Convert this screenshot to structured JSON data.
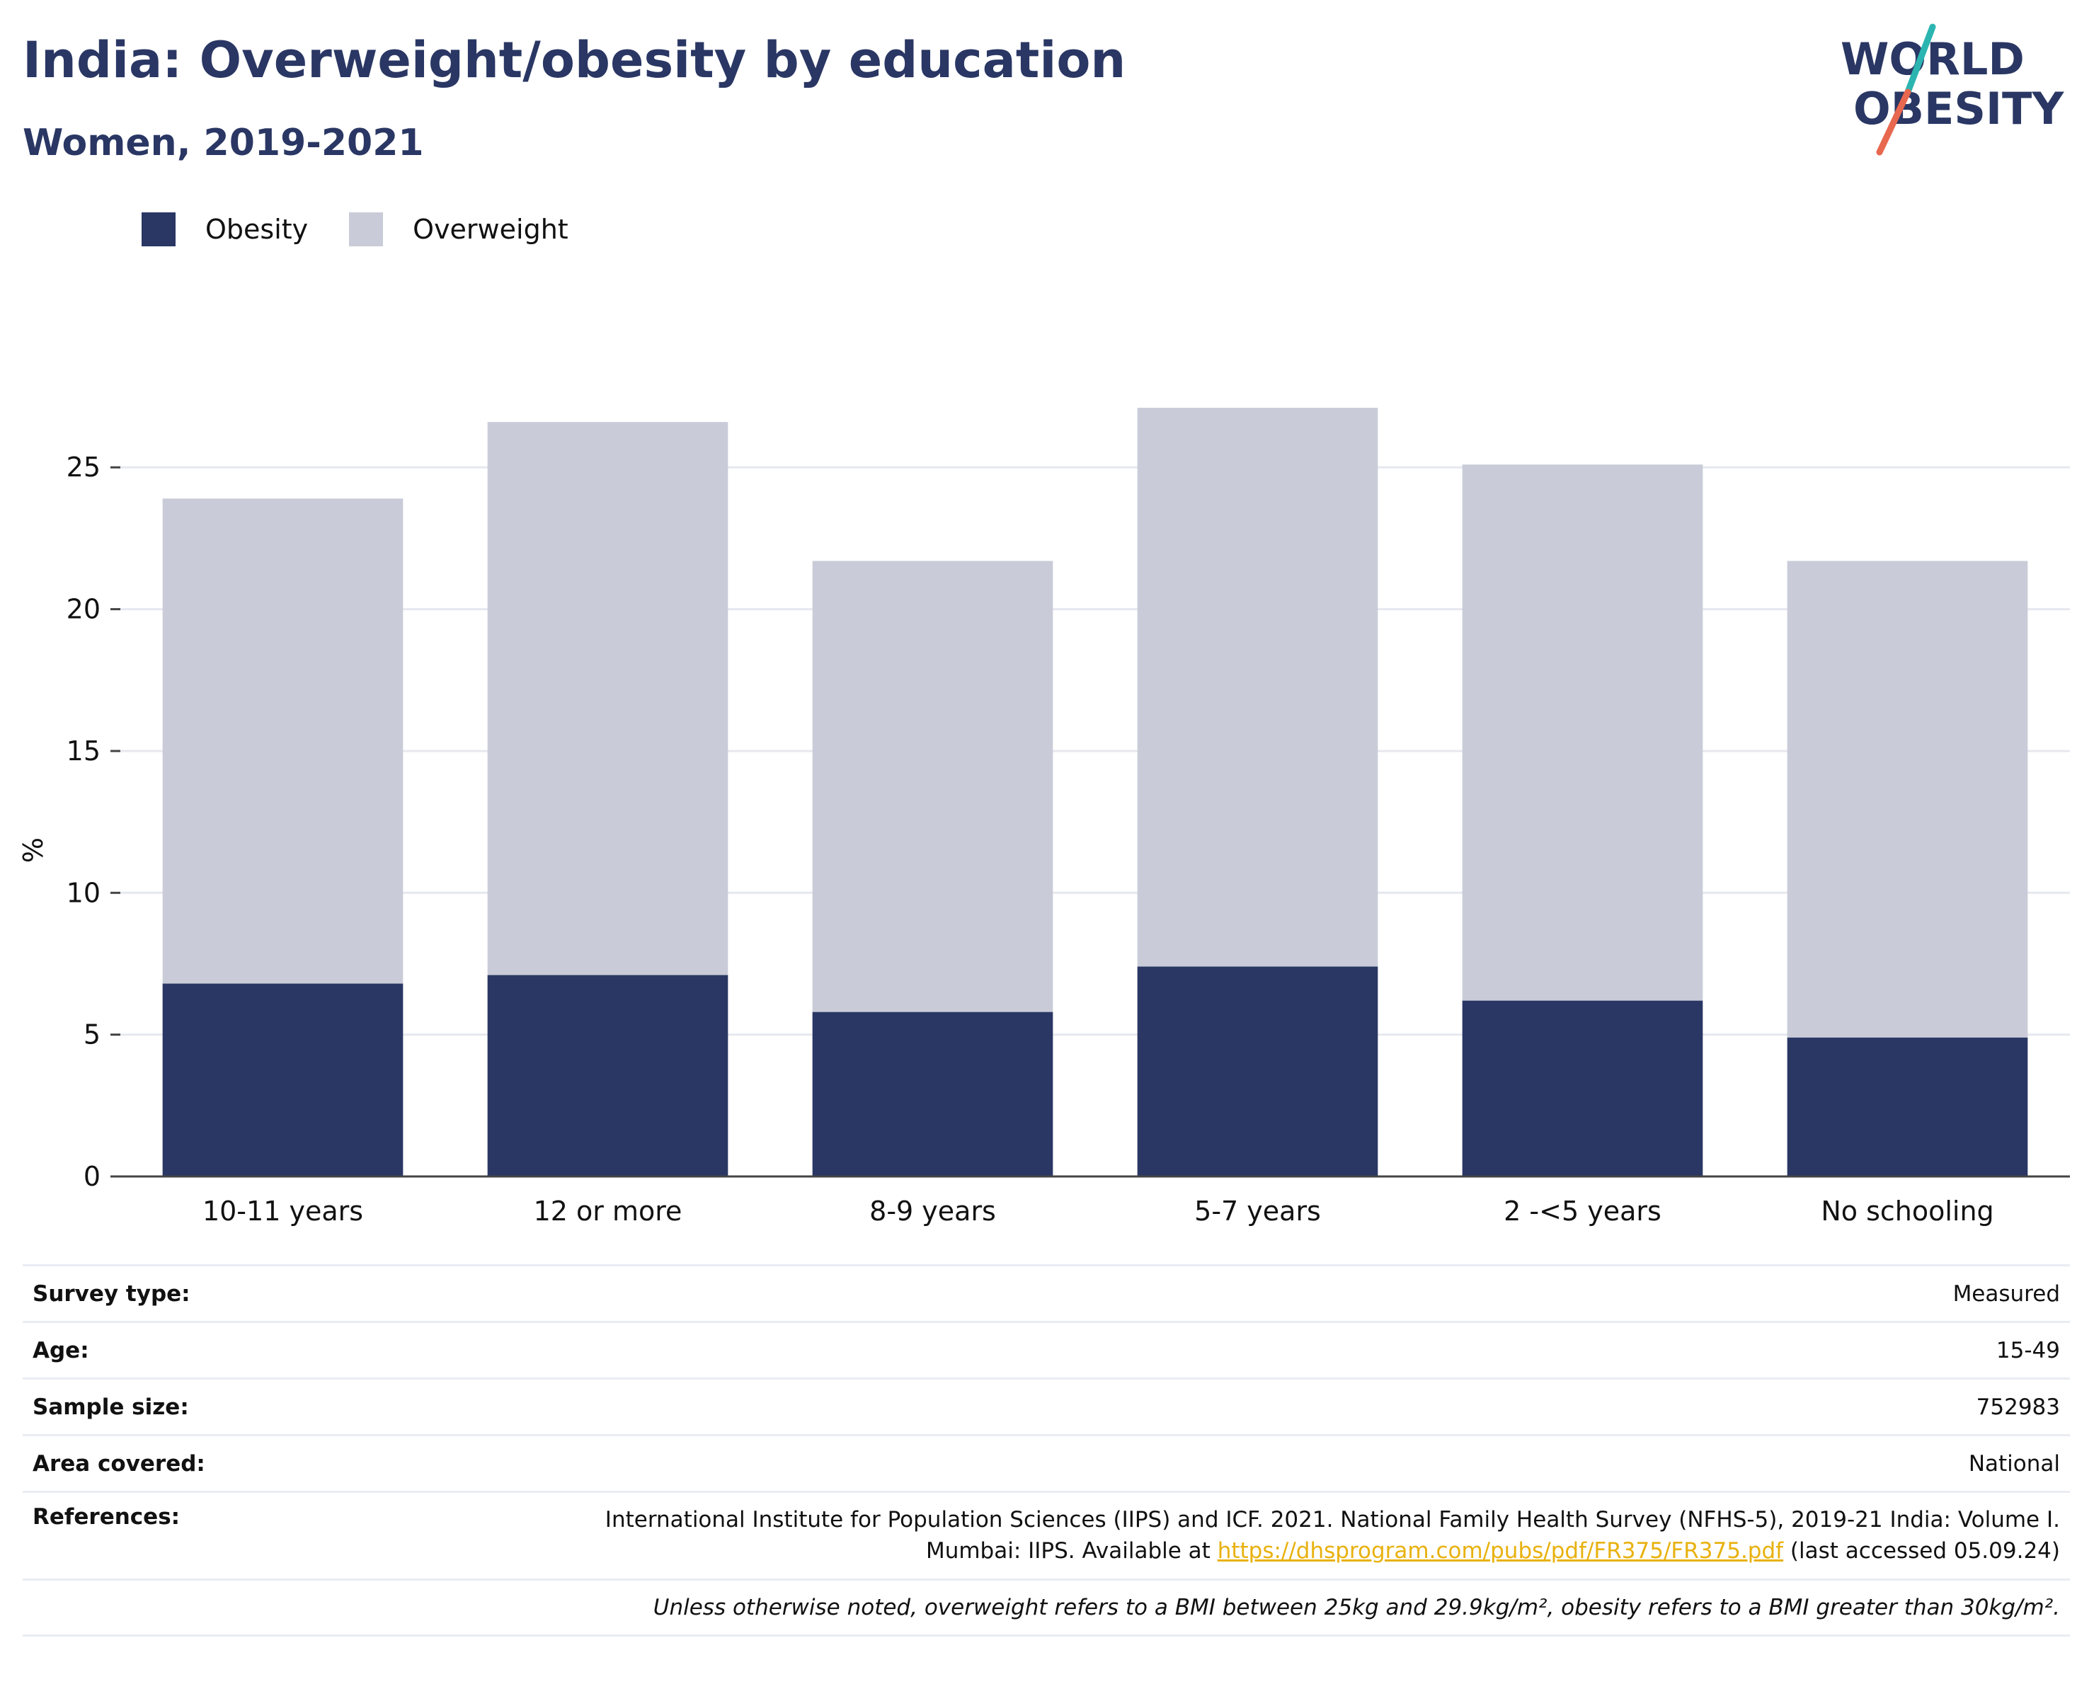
{
  "header": {
    "title": "India: Overweight/obesity by education",
    "subtitle": "Women, 2019-2021"
  },
  "logo": {
    "line1": "WORLD",
    "line2": "OBESITY",
    "colors": {
      "text": "#2a3764",
      "slash_top": "#2bb5b1",
      "slash_bottom": "#e8674f"
    }
  },
  "legend": [
    {
      "label": "Obesity",
      "color": "#2a3764"
    },
    {
      "label": "Overweight",
      "color": "#c9ccd8"
    }
  ],
  "chart_data": {
    "type": "bar",
    "stacked": true,
    "categories": [
      "10-11 years",
      "12 or more",
      "8-9 years",
      "5-7 years",
      "2 -<5 years",
      "No schooling"
    ],
    "series": [
      {
        "name": "Obesity",
        "color": "#2a3764",
        "values": [
          6.8,
          7.1,
          5.8,
          7.4,
          6.2,
          4.9
        ]
      },
      {
        "name": "Overweight",
        "color": "#c9ccd8",
        "values": [
          17.1,
          19.5,
          15.9,
          19.7,
          18.9,
          16.8
        ]
      }
    ],
    "ylabel": "%",
    "ylim": [
      0,
      28.5
    ],
    "yticks": [
      0,
      5,
      10,
      15,
      20,
      25
    ],
    "grid": true,
    "legend_position": "top-left"
  },
  "meta": {
    "survey_type": {
      "key": "Survey type:",
      "value": "Measured"
    },
    "age": {
      "key": "Age:",
      "value": "15-49"
    },
    "sample_size": {
      "key": "Sample size:",
      "value": "752983"
    },
    "area": {
      "key": "Area covered:",
      "value": "National"
    },
    "references": {
      "key": "References:",
      "line1": "International Institute for Population Sciences (IIPS) and ICF. 2021. National Family Health Survey (NFHS-5), 2019-21 India: Volume I.",
      "line2_prefix": "Mumbai: IIPS. Available at ",
      "link": "https://dhsprogram.com/pubs/pdf/FR375/FR375.pdf",
      "line2_suffix": " (last accessed 05.09.24)"
    },
    "note": "Unless otherwise noted, overweight refers to a BMI between 25kg and 29.9kg/m², obesity refers to a BMI greater than 30kg/m²."
  }
}
